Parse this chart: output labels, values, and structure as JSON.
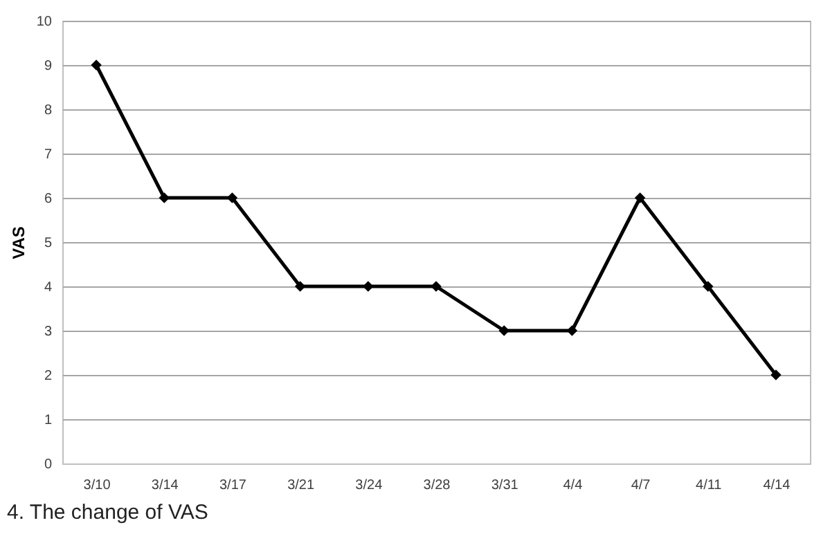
{
  "chart_data": {
    "type": "line",
    "ylabel": "VAS",
    "annotations": [
      "4. The change of VAS"
    ],
    "categories": [
      "3/10",
      "3/14",
      "3/17",
      "3/21",
      "3/24",
      "3/28",
      "3/31",
      "4/4",
      "4/7",
      "4/11",
      "4/14"
    ],
    "series": [
      {
        "color": "#000000",
        "values": [
          9,
          6,
          6,
          4,
          4,
          4,
          3,
          3,
          6,
          4,
          2
        ]
      }
    ],
    "ylim": [
      0,
      10
    ],
    "yticks": [
      0,
      1,
      2,
      3,
      4,
      5,
      6,
      7,
      8,
      9,
      10
    ],
    "grid": "y",
    "marker": "diamond",
    "line_style": "solid"
  }
}
